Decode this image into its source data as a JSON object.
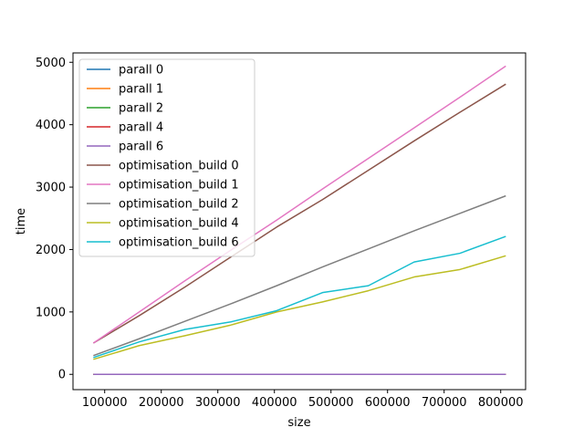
{
  "chart_data": {
    "type": "line",
    "xlabel": "size",
    "ylabel": "time",
    "xlim": [
      44000,
      844000
    ],
    "ylim": [
      -245,
      5150
    ],
    "x_ticks": [
      100000,
      200000,
      300000,
      400000,
      500000,
      600000,
      700000,
      800000
    ],
    "y_ticks": [
      0,
      1000,
      2000,
      3000,
      4000,
      5000
    ],
    "x_tick_labels": [
      "100000",
      "200000",
      "300000",
      "400000",
      "500000",
      "600000",
      "700000",
      "800000"
    ],
    "y_tick_labels": [
      "0",
      "1000",
      "2000",
      "3000",
      "4000",
      "5000"
    ],
    "legend_position": "upper-left",
    "grid": false,
    "x": [
      80000,
      161000,
      242000,
      323000,
      404000,
      485000,
      566000,
      647000,
      728000,
      809000
    ],
    "series": [
      {
        "name": "parall 0",
        "color": "#1f77b4",
        "values": [
          0,
          0,
          0,
          0,
          0,
          0,
          0,
          0,
          0,
          0
        ]
      },
      {
        "name": "parall 1",
        "color": "#ff7f0e",
        "values": [
          0,
          0,
          0,
          0,
          0,
          0,
          0,
          0,
          0,
          0
        ]
      },
      {
        "name": "parall 2",
        "color": "#2ca02c",
        "values": [
          0,
          0,
          0,
          0,
          0,
          0,
          0,
          0,
          0,
          0
        ]
      },
      {
        "name": "parall 4",
        "color": "#d62728",
        "values": [
          0,
          0,
          0,
          0,
          0,
          0,
          0,
          0,
          0,
          0
        ]
      },
      {
        "name": "parall 6",
        "color": "#9467bd",
        "values": [
          0,
          0,
          0,
          0,
          0,
          0,
          0,
          0,
          0,
          0
        ]
      },
      {
        "name": "optimisation_build 0",
        "color": "#8c564b",
        "values": [
          500,
          940,
          1400,
          1880,
          2360,
          2800,
          3270,
          3740,
          4200,
          4650
        ]
      },
      {
        "name": "optimisation_build 1",
        "color": "#e377c2",
        "values": [
          500,
          1000,
          1500,
          1990,
          2470,
          2970,
          3460,
          3950,
          4440,
          4940
        ]
      },
      {
        "name": "optimisation_build 2",
        "color": "#7f7f7f",
        "values": [
          300,
          570,
          850,
          1130,
          1420,
          1720,
          2010,
          2300,
          2580,
          2860
        ]
      },
      {
        "name": "optimisation_build 4",
        "color": "#bcbd22",
        "values": [
          240,
          460,
          620,
          790,
          1000,
          1160,
          1340,
          1560,
          1680,
          1900
        ]
      },
      {
        "name": "optimisation_build 6",
        "color": "#17becf",
        "values": [
          270,
          520,
          720,
          840,
          1020,
          1310,
          1420,
          1800,
          1940,
          2210
        ]
      }
    ]
  }
}
